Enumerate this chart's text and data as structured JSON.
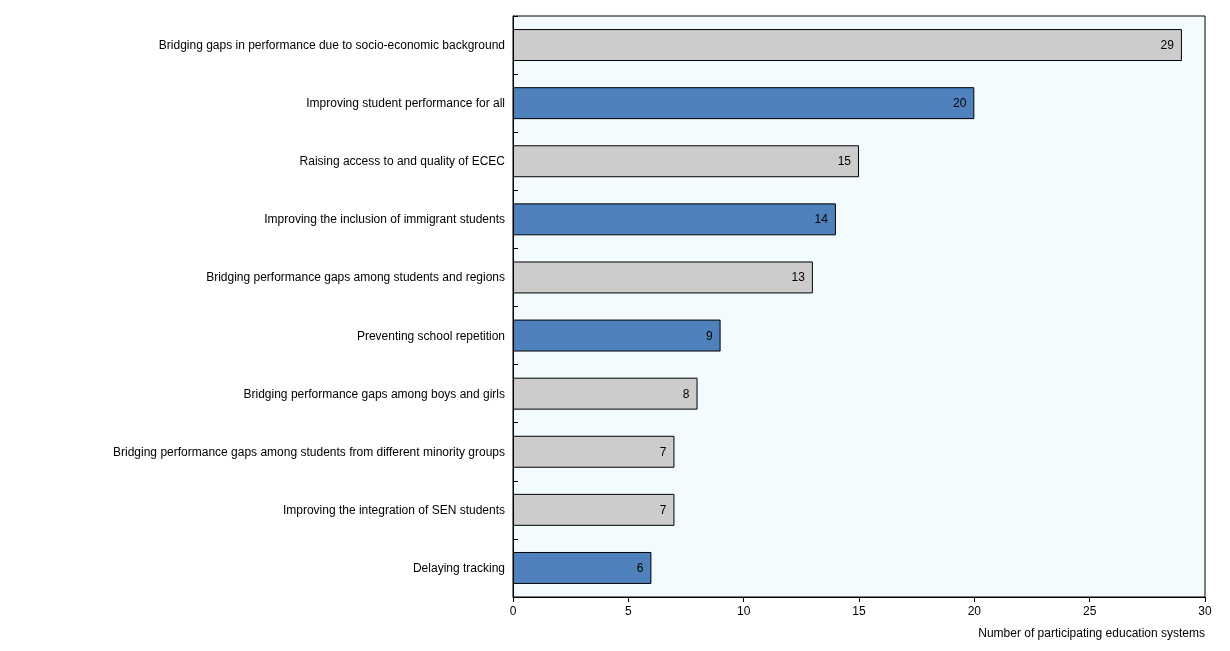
{
  "chart_data": {
    "type": "bar",
    "orientation": "horizontal",
    "categories": [
      "Bridging gaps in performance due to socio-economic background",
      "Improving student performance for all",
      "Raising access to and quality of ECEC",
      "Improving the inclusion of immigrant students",
      "Bridging performance gaps among students and regions",
      "Preventing school repetition",
      "Bridging performance gaps among boys and girls",
      "Bridging performance gaps among students from different minority groups",
      "Improving the integration of SEN students",
      "Delaying tracking"
    ],
    "values": [
      29,
      20,
      15,
      14,
      13,
      9,
      8,
      7,
      7,
      6
    ],
    "colors": [
      "#cccccc",
      "#4f81bd",
      "#cccccc",
      "#4f81bd",
      "#cccccc",
      "#4f81bd",
      "#cccccc",
      "#cccccc",
      "#cccccc",
      "#4f81bd"
    ],
    "xlim": [
      0,
      30
    ],
    "xticks": [
      0,
      5,
      10,
      15,
      20,
      25,
      30
    ],
    "xlabel": "Number of participating education systems",
    "data_labels": true,
    "grid": false
  }
}
